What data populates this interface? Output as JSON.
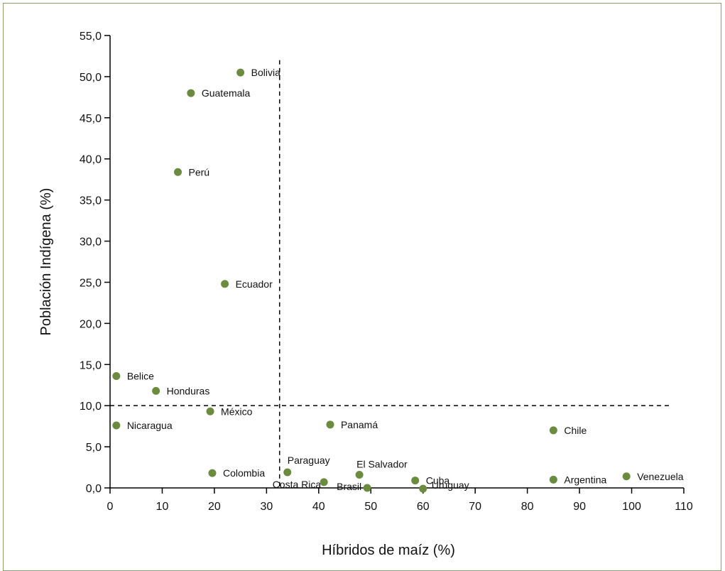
{
  "chart_data": {
    "type": "scatter",
    "title": "",
    "xlabel": "Híbridos de maíz (%)",
    "ylabel": "Población Indígena (%)",
    "xlim": [
      0,
      110
    ],
    "ylim": [
      0,
      55
    ],
    "x_ticks": [
      "0",
      "10",
      "20",
      "30",
      "40",
      "50",
      "60",
      "70",
      "80",
      "90",
      "100",
      "110"
    ],
    "y_ticks": [
      "0,0",
      "5,0",
      "10,0",
      "15,0",
      "20,0",
      "25,0",
      "30,0",
      "35,0",
      "40,0",
      "45,0",
      "50,0",
      "55,0"
    ],
    "reference_lines": {
      "x": 32.5,
      "y": 10
    },
    "grid": false,
    "marker_color": "#6b8c3e",
    "points": [
      {
        "label": "Bolivia",
        "x": 25.0,
        "y": 50.5
      },
      {
        "label": "Guatemala",
        "x": 15.5,
        "y": 48.0
      },
      {
        "label": "Perú",
        "x": 13.0,
        "y": 38.4
      },
      {
        "label": "Ecuador",
        "x": 22.0,
        "y": 24.8
      },
      {
        "label": "Belice",
        "x": 1.2,
        "y": 13.6
      },
      {
        "label": "Honduras",
        "x": 8.8,
        "y": 11.8
      },
      {
        "label": "México",
        "x": 19.2,
        "y": 9.3
      },
      {
        "label": "Nicaragua",
        "x": 1.2,
        "y": 7.6
      },
      {
        "label": "Panamá",
        "x": 42.2,
        "y": 7.7
      },
      {
        "label": "Chile",
        "x": 85.0,
        "y": 7.0
      },
      {
        "label": "Colombia",
        "x": 19.6,
        "y": 1.8
      },
      {
        "label": "Paraguay",
        "x": 34.0,
        "y": 1.9
      },
      {
        "label": "Costa Rica",
        "x": 41.0,
        "y": 0.7
      },
      {
        "label": "Brasil",
        "x": 49.3,
        "y": 0.0
      },
      {
        "label": "El Salvador",
        "x": 47.8,
        "y": 1.6
      },
      {
        "label": "Cuba",
        "x": 58.5,
        "y": 0.9
      },
      {
        "label": "Uruguay",
        "x": 60.0,
        "y": -0.1
      },
      {
        "label": "Argentina",
        "x": 85.0,
        "y": 1.0
      },
      {
        "label": "Venezuela",
        "x": 99.0,
        "y": 1.4
      }
    ]
  }
}
